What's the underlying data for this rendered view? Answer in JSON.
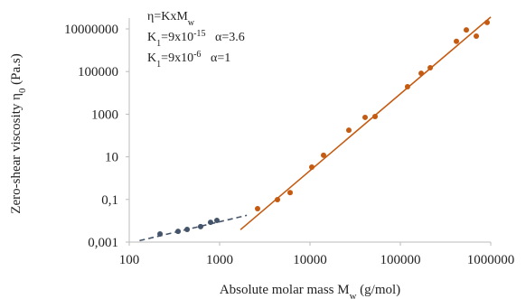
{
  "chart_data": {
    "type": "scatter",
    "x_label": [
      {
        "text": "Absolute molar mass M"
      },
      {
        "text": "w",
        "style": "sub"
      },
      {
        "text": " (g/mol)"
      }
    ],
    "y_label": [
      {
        "text": "Zero-shear viscosity η"
      },
      {
        "text": "0",
        "style": "sub"
      },
      {
        "text": " (Pa.s)"
      }
    ],
    "annotation": [
      [
        {
          "text": "η=KxM"
        },
        {
          "text": "w",
          "style": "sub"
        }
      ],
      [
        {
          "text": "K"
        },
        {
          "text": "1",
          "style": "sub"
        },
        {
          "text": "=9x10"
        },
        {
          "text": "-15",
          "style": "sup"
        },
        {
          "text": "   α=3.6"
        }
      ],
      [
        {
          "text": "K"
        },
        {
          "text": "1",
          "style": "sub"
        },
        {
          "text": "=9x10"
        },
        {
          "text": "-6",
          "style": "sup"
        },
        {
          "text": "   α=1"
        }
      ]
    ],
    "xscale": "log",
    "yscale": "log",
    "xlim": [
      100,
      1000000
    ],
    "ylim": [
      0.001,
      10000000
    ],
    "xticks": [
      100,
      1000,
      10000,
      100000,
      1000000
    ],
    "yticks": [
      {
        "value": 0.001,
        "label": "0,001"
      },
      {
        "value": 0.1,
        "label": "0,1"
      },
      10,
      1000,
      100000,
      10000000
    ],
    "series": [
      {
        "color": "#44546a",
        "x": [
          219,
          347,
          437,
          616,
          794,
          933
        ],
        "values": [
          0.0024,
          0.0032,
          0.0039,
          0.0053,
          0.0085,
          0.0104
        ]
      },
      {
        "color": "#c55a11",
        "x": [
          2630,
          4365,
          6026,
          10470,
          14125,
          26900,
          40700,
          52500,
          120000,
          170000,
          214000,
          417000,
          537000,
          692000,
          912000
        ],
        "values": [
          0.037,
          0.098,
          0.21,
          3.3,
          11.8,
          178,
          708,
          776,
          19500,
          83000,
          150000,
          2600000,
          9000000,
          4600000,
          20000000
        ]
      }
    ],
    "fits": [
      {
        "color": "#44546a",
        "dash": true,
        "x": [
          130,
          2000
        ],
        "values": [
          0.00117,
          0.018
        ]
      },
      {
        "color": "#c55a11",
        "dash": false,
        "x": [
          1700,
          1000000
        ],
        "values": [
          0.0038,
          36000000
        ]
      }
    ]
  }
}
